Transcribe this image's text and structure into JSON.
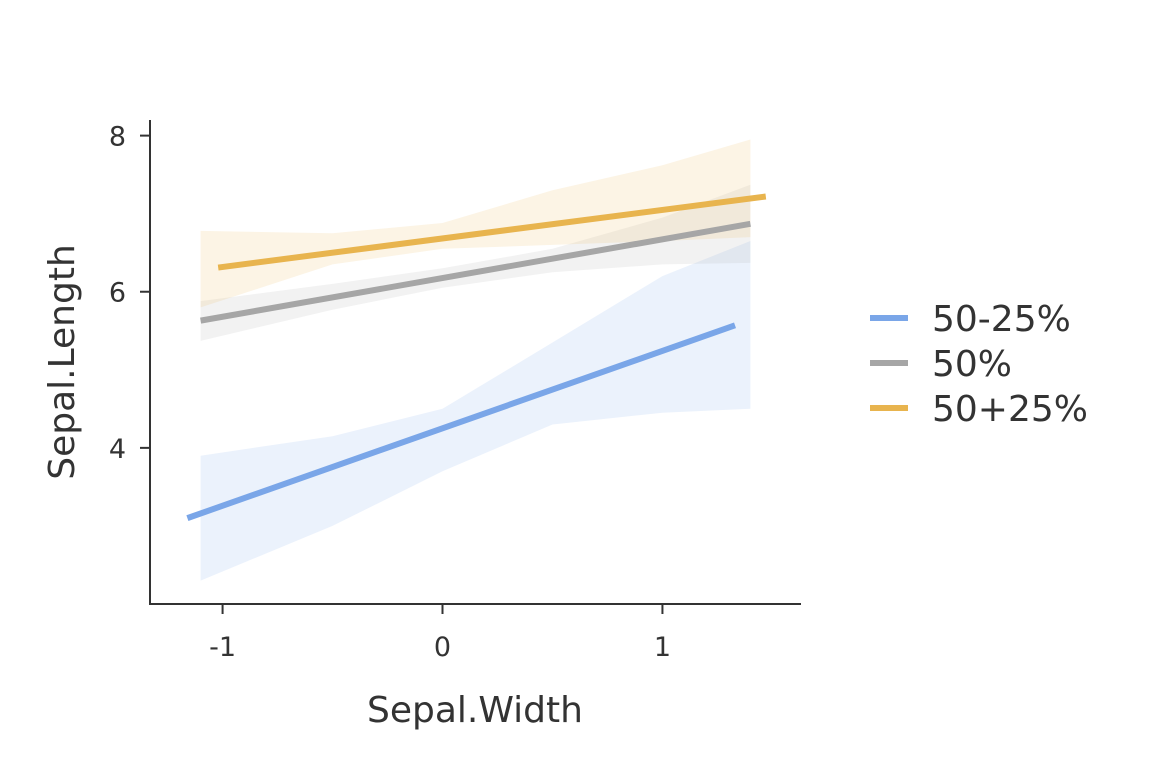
{
  "chart_data": {
    "type": "line",
    "title": "",
    "xlabel": "Sepal.Width",
    "ylabel": "Sepal.Length",
    "xlim": [
      -1.33,
      1.63
    ],
    "ylim": [
      2.0,
      8.2
    ],
    "x_ticks": [
      -1,
      0,
      1
    ],
    "y_ticks": [
      4,
      6,
      8
    ],
    "grid": false,
    "legend_position": "right",
    "series": [
      {
        "name": "50-25%",
        "color": "#7aa6e8",
        "line": [
          [
            -1.16,
            3.1
          ],
          [
            1.33,
            5.57
          ]
        ],
        "band": [
          [
            -1.1,
            2.3,
            3.9
          ],
          [
            -0.5,
            3.0,
            4.15
          ],
          [
            0.0,
            3.7,
            4.5
          ],
          [
            0.5,
            4.3,
            5.35
          ],
          [
            1.0,
            4.45,
            6.2
          ],
          [
            1.4,
            4.5,
            6.65
          ]
        ]
      },
      {
        "name": "50%",
        "color": "#a6a6a6",
        "line": [
          [
            -1.1,
            5.63
          ],
          [
            1.4,
            6.87
          ]
        ],
        "band": [
          [
            -1.1,
            5.37,
            5.88
          ],
          [
            -0.5,
            5.77,
            6.1
          ],
          [
            0.0,
            6.05,
            6.3
          ],
          [
            0.5,
            6.25,
            6.55
          ],
          [
            1.0,
            6.35,
            6.95
          ],
          [
            1.4,
            6.37,
            7.37
          ]
        ]
      },
      {
        "name": "50+25%",
        "color": "#e8b44e",
        "line": [
          [
            -1.02,
            6.31
          ],
          [
            1.47,
            7.22
          ]
        ],
        "band": [
          [
            -1.1,
            5.8,
            6.78
          ],
          [
            -0.5,
            6.35,
            6.75
          ],
          [
            0.0,
            6.55,
            6.88
          ],
          [
            0.5,
            6.6,
            7.3
          ],
          [
            1.0,
            6.65,
            7.62
          ],
          [
            1.4,
            6.7,
            7.95
          ]
        ]
      }
    ]
  }
}
